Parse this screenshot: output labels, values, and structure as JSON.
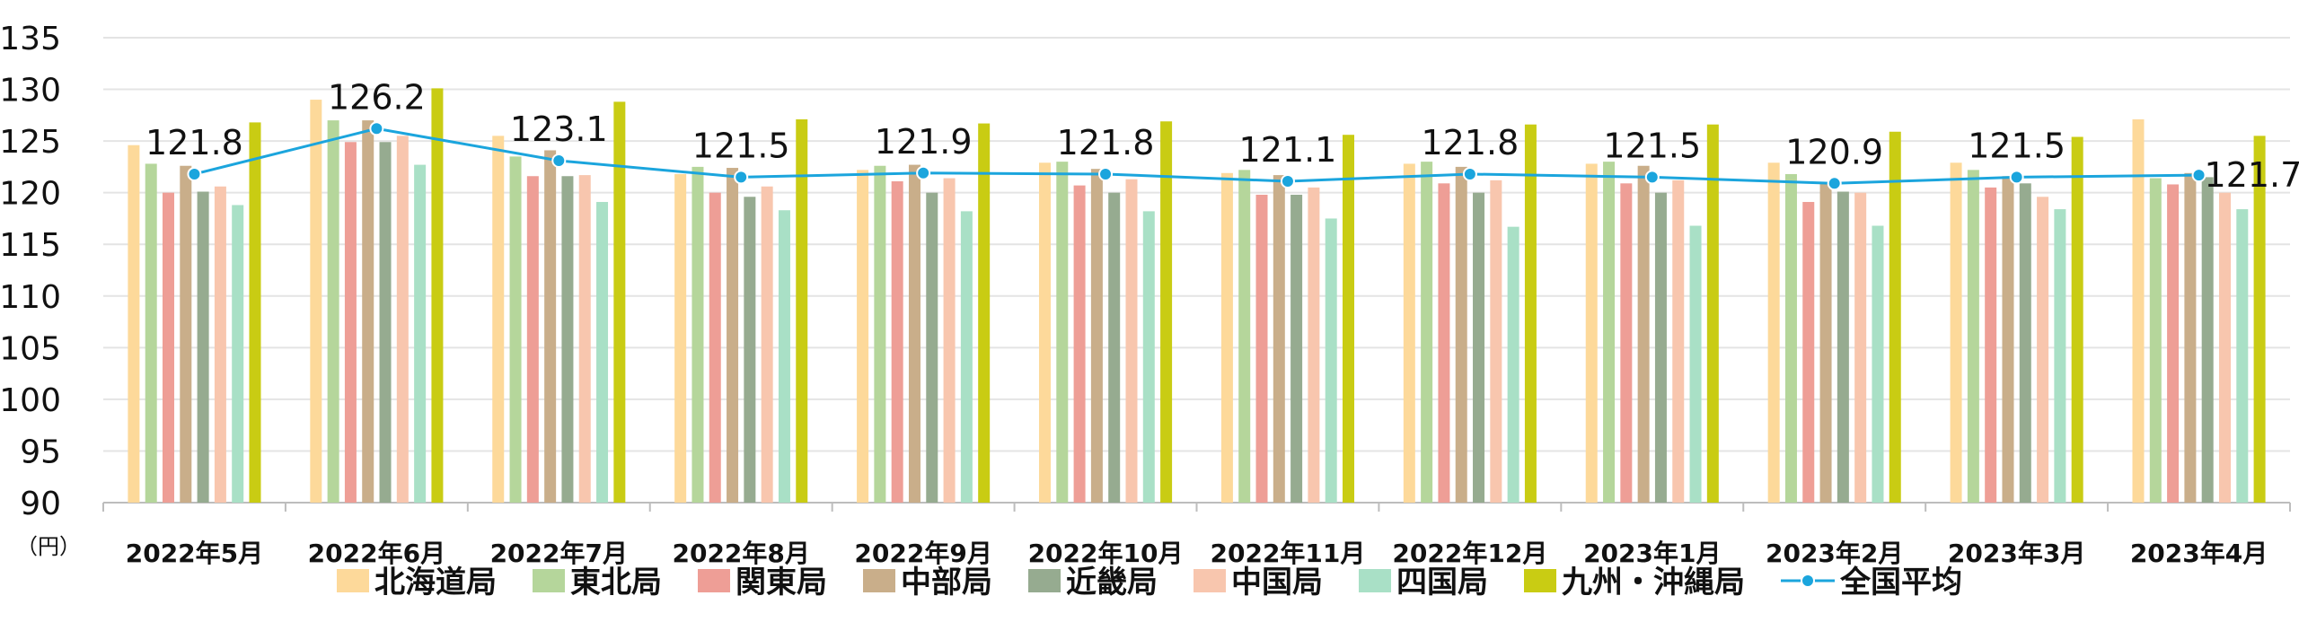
{
  "chart_data": {
    "type": "bar",
    "categories": [
      "2022年5月",
      "2022年6月",
      "2022年7月",
      "2022年8月",
      "2022年9月",
      "2022年10月",
      "2022年11月",
      "2022年12月",
      "2023年1月",
      "2023年2月",
      "2023年3月",
      "2023年4月"
    ],
    "ylim": [
      90,
      135
    ],
    "yticks": [
      90,
      95,
      100,
      105,
      110,
      115,
      120,
      125,
      130,
      135
    ],
    "y_unit": "（円）",
    "grid": true,
    "legend_position": "bottom",
    "series": [
      {
        "name": "北海道局",
        "color": "#FDD99A",
        "values": [
          124.6,
          129.0,
          125.5,
          121.8,
          122.2,
          122.9,
          121.9,
          122.8,
          122.8,
          122.9,
          122.9,
          127.1
        ]
      },
      {
        "name": "東北局",
        "color": "#B5D69B",
        "values": [
          122.8,
          127.0,
          123.5,
          122.5,
          122.6,
          123.0,
          122.2,
          123.0,
          123.0,
          121.8,
          122.2,
          121.4
        ]
      },
      {
        "name": "関東局",
        "color": "#EE9E96",
        "values": [
          120.0,
          124.9,
          121.6,
          120.0,
          121.1,
          120.7,
          119.8,
          120.9,
          120.9,
          119.1,
          120.5,
          120.8
        ]
      },
      {
        "name": "中部局",
        "color": "#C9AE8A",
        "values": [
          122.6,
          127.0,
          124.1,
          122.4,
          122.7,
          122.3,
          121.7,
          122.5,
          122.6,
          121.0,
          121.6,
          121.9
        ]
      },
      {
        "name": "近畿局",
        "color": "#96AB90",
        "values": [
          120.1,
          124.9,
          121.6,
          119.6,
          120.0,
          120.0,
          119.8,
          120.0,
          120.0,
          120.1,
          120.9,
          121.5
        ]
      },
      {
        "name": "中国局",
        "color": "#F8C6AE",
        "values": [
          120.6,
          125.5,
          121.7,
          120.6,
          121.4,
          121.3,
          120.5,
          121.2,
          121.2,
          120.0,
          119.6,
          120.0
        ]
      },
      {
        "name": "四国局",
        "color": "#A9E0C6",
        "values": [
          118.8,
          122.7,
          119.1,
          118.3,
          118.2,
          118.2,
          117.5,
          116.7,
          116.8,
          116.8,
          118.4,
          118.4
        ]
      },
      {
        "name": "九州・沖縄局",
        "color": "#C9CC13",
        "values": [
          126.8,
          130.1,
          128.8,
          127.1,
          126.7,
          126.9,
          125.6,
          126.6,
          126.6,
          125.9,
          125.4,
          125.5
        ]
      }
    ],
    "line_series": {
      "name": "全国平均",
      "color": "#1BA5DD",
      "values": [
        121.8,
        126.2,
        123.1,
        121.5,
        121.9,
        121.8,
        121.1,
        121.8,
        121.5,
        120.9,
        121.5,
        121.7
      ],
      "labels": [
        "121.8",
        "126.2",
        "123.1",
        "121.5",
        "121.9",
        "121.8",
        "121.1",
        "121.8",
        "121.5",
        "120.9",
        "121.5",
        "121.7"
      ]
    }
  }
}
